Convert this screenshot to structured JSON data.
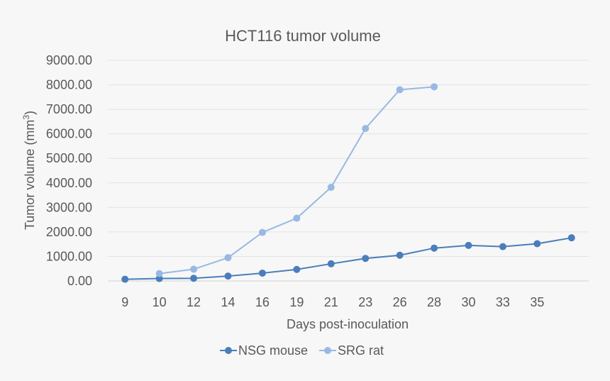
{
  "chart_data": {
    "type": "line",
    "title": "HCT116 tumor volume",
    "xlabel": "Days post-inoculation",
    "ylabel_main": "Tumor volume (mm",
    "ylabel_sup": "3",
    "ylabel_close": ")",
    "ylim": [
      0,
      9000
    ],
    "yticks": [
      "0.00",
      "1000.00",
      "2000.00",
      "3000.00",
      "4000.00",
      "5000.00",
      "6000.00",
      "7000.00",
      "8000.00",
      "9000.00"
    ],
    "ytick_values": [
      0,
      1000,
      2000,
      3000,
      4000,
      5000,
      6000,
      7000,
      8000,
      9000
    ],
    "categories": [
      "9",
      "10",
      "12",
      "14",
      "16",
      "19",
      "21",
      "23",
      "26",
      "28",
      "30",
      "33",
      "35",
      ""
    ],
    "grid": true,
    "legend_position": "bottom",
    "series": [
      {
        "name": "NSG mouse",
        "color": "#4a7ebb",
        "values": [
          70,
          100,
          110,
          200,
          320,
          470,
          700,
          920,
          1050,
          1340,
          1450,
          1400,
          1520,
          1760
        ]
      },
      {
        "name": "SRG rat",
        "color": "#98b9e3",
        "values": [
          null,
          300,
          480,
          950,
          1980,
          2560,
          3820,
          6220,
          7800,
          7920,
          null,
          null,
          null,
          null
        ]
      }
    ]
  }
}
